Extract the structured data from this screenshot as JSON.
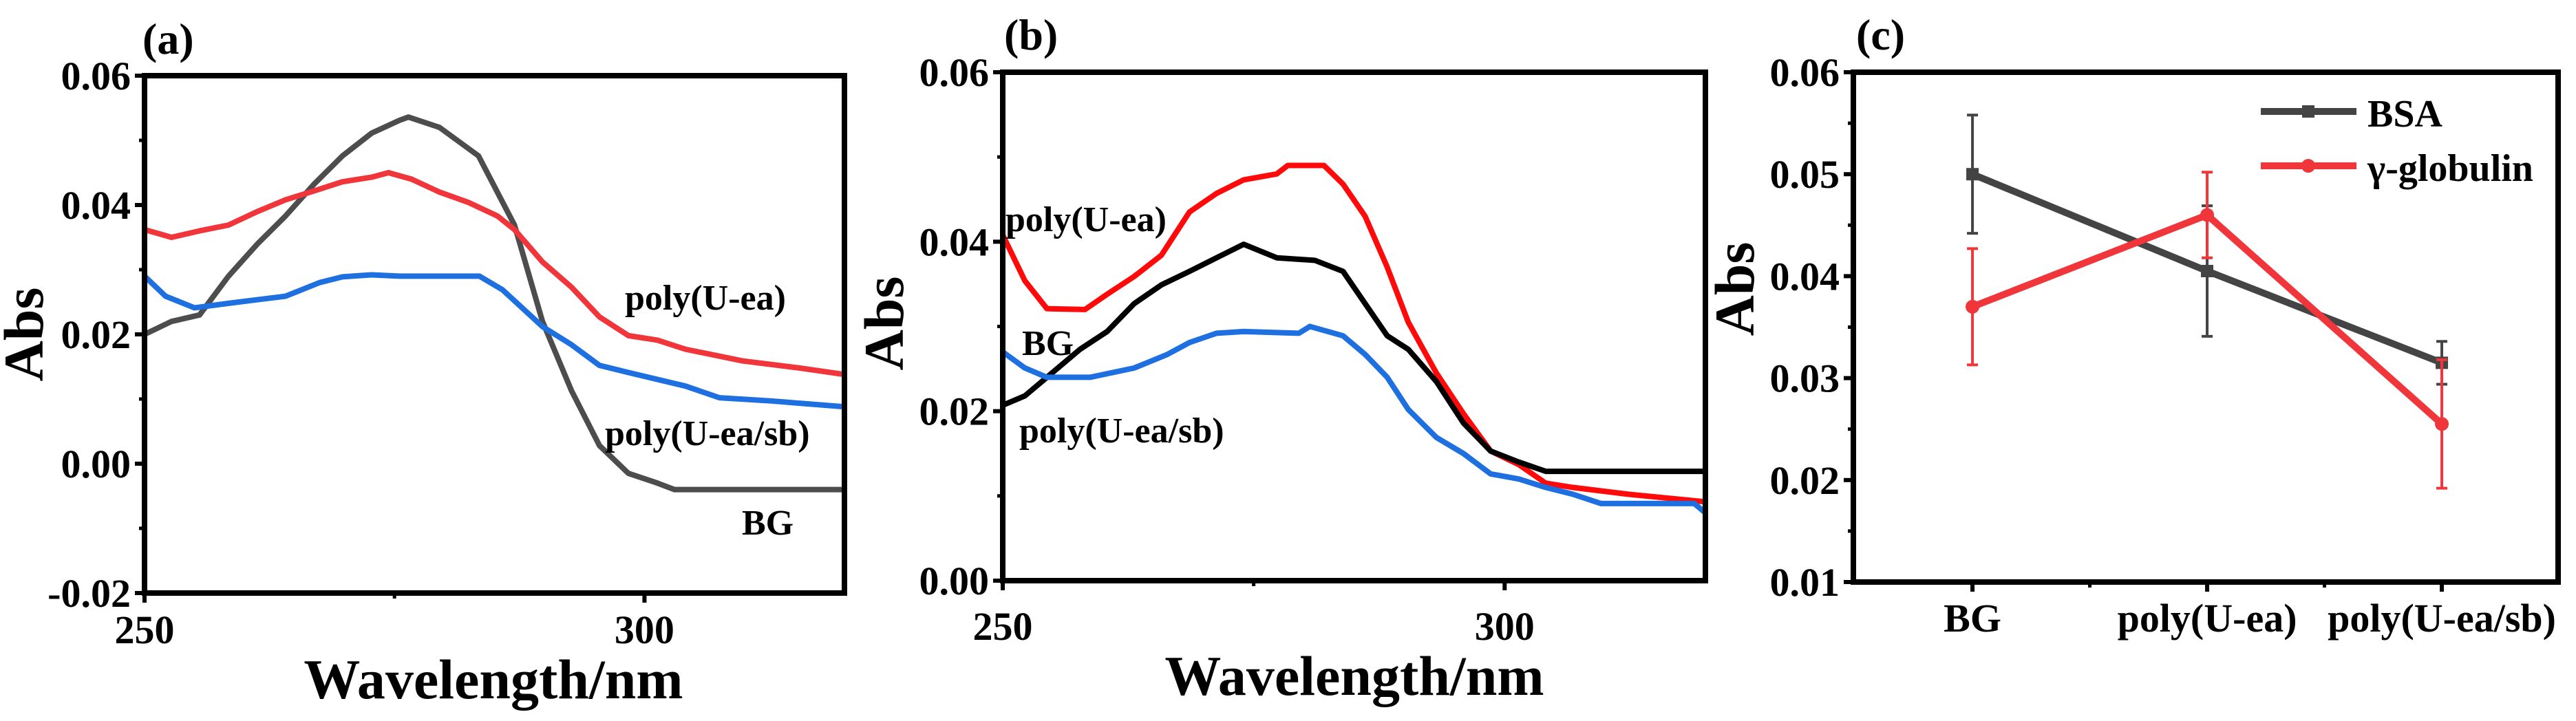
{
  "chart_data": [
    {
      "type": "line",
      "panel_label": "(a)",
      "xlabel": "Wavelength/nm",
      "ylabel": "Abs",
      "xlim": [
        250,
        320
      ],
      "ylim": [
        -0.02,
        0.06
      ],
      "xticks": [
        250,
        300
      ],
      "xtick_labels": [
        "250",
        "300"
      ],
      "yticks": [
        -0.02,
        0.0,
        0.02,
        0.04,
        0.06
      ],
      "ytick_labels": [
        "-0.02",
        "0.00",
        "0.02",
        "0.04",
        "0.06"
      ],
      "series": [
        {
          "name": "BG",
          "color": "#4d4d4d",
          "x": [
            250,
            252.7,
            255.5,
            258.4,
            261.3,
            264.1,
            267,
            269.8,
            272.7,
            275.5,
            276.4,
            279.5,
            283.4,
            287,
            289.8,
            292.7,
            295.5,
            298.4,
            301.3,
            303,
            320
          ],
          "y": [
            0.02,
            0.022,
            0.023,
            0.029,
            0.034,
            0.0383,
            0.0433,
            0.0476,
            0.0511,
            0.0531,
            0.0536,
            0.052,
            0.0476,
            0.0369,
            0.022,
            0.0113,
            0.0028,
            -0.0015,
            -0.003,
            -0.004,
            -0.004
          ]
        },
        {
          "name": "poly(U-ea)",
          "color": "#f0363a",
          "x": [
            250,
            252.7,
            255.5,
            258.4,
            261.3,
            264.1,
            267,
            269.8,
            272.7,
            274.4,
            276.7,
            279.5,
            282.4,
            285.3,
            287,
            289.8,
            292.7,
            295.5,
            298.4,
            301.3,
            304.1,
            309.8,
            315.5,
            320
          ],
          "y": [
            0.0362,
            0.035,
            0.036,
            0.0369,
            0.039,
            0.0408,
            0.0422,
            0.0436,
            0.0443,
            0.045,
            0.044,
            0.042,
            0.0404,
            0.0383,
            0.0362,
            0.0312,
            0.0273,
            0.0227,
            0.0198,
            0.0191,
            0.0177,
            0.0159,
            0.0148,
            0.0138
          ]
        },
        {
          "name": "poly(U-ea/sb)",
          "color": "#1e6fe0",
          "x": [
            250,
            252.1,
            255,
            258.4,
            264.1,
            267.5,
            269.8,
            272.7,
            275.5,
            283.5,
            285.8,
            289.8,
            292.7,
            295.5,
            298.4,
            304.1,
            307.5,
            312.7,
            320
          ],
          "y": [
            0.029,
            0.0259,
            0.0241,
            0.0248,
            0.0259,
            0.028,
            0.0289,
            0.0292,
            0.029,
            0.029,
            0.0269,
            0.0212,
            0.0184,
            0.0152,
            0.0141,
            0.012,
            0.0102,
            0.0097,
            0.0088
          ]
        }
      ],
      "annotations": [
        "poly(U-ea)",
        "poly(U-ea/sb)",
        "BG"
      ]
    },
    {
      "type": "line",
      "panel_label": "(b)",
      "xlabel": "Wavelength/nm",
      "ylabel": "Abs",
      "xlim": [
        250,
        320
      ],
      "ylim": [
        0.0,
        0.06
      ],
      "xticks": [
        250,
        300
      ],
      "xtick_labels": [
        "250",
        "300"
      ],
      "yticks": [
        0.0,
        0.02,
        0.04,
        0.06
      ],
      "ytick_labels": [
        "0.00",
        "0.02",
        "0.04",
        "0.06"
      ],
      "series": [
        {
          "name": "poly(U-ea)",
          "color": "#ff0a0a",
          "x": [
            250,
            252.2,
            254.4,
            258.2,
            260.4,
            263.1,
            265.8,
            268.6,
            271.3,
            274,
            277.3,
            278.4,
            282,
            283.9,
            286.1,
            288.3,
            290.4,
            293.2,
            295.9,
            298.6,
            301.4,
            304.1,
            306.8,
            312.3,
            320
          ],
          "y": [
            0.0408,
            0.0354,
            0.0321,
            0.032,
            0.0338,
            0.0359,
            0.0384,
            0.0435,
            0.0457,
            0.0473,
            0.048,
            0.049,
            0.049,
            0.0468,
            0.043,
            0.037,
            0.0305,
            0.0245,
            0.0197,
            0.0153,
            0.0137,
            0.0115,
            0.011,
            0.0102,
            0.0093
          ]
        },
        {
          "name": "BG",
          "color": "#000000",
          "x": [
            250,
            252.2,
            254.4,
            257.7,
            260.4,
            263.1,
            265.8,
            268.6,
            271.3,
            274,
            277.3,
            281.1,
            283.9,
            286.1,
            288.3,
            290.4,
            293.2,
            295.9,
            298.6,
            301.4,
            304.1,
            320
          ],
          "y": [
            0.0207,
            0.0218,
            0.024,
            0.0273,
            0.0294,
            0.0327,
            0.0349,
            0.0365,
            0.0381,
            0.0397,
            0.0381,
            0.0378,
            0.0365,
            0.0327,
            0.0289,
            0.0273,
            0.0235,
            0.0186,
            0.0153,
            0.014,
            0.0129,
            0.0129
          ]
        },
        {
          "name": "poly(U-ea/sb)",
          "color": "#1e6fe0",
          "x": [
            250,
            252.2,
            254.4,
            258.7,
            263.1,
            266.4,
            268.6,
            271.3,
            274,
            279.5,
            280.6,
            283.9,
            286.1,
            288.3,
            290.4,
            293.2,
            295.9,
            298.6,
            301.4,
            304.1,
            306.8,
            309.6,
            318.9,
            320
          ],
          "y": [
            0.027,
            0.0251,
            0.024,
            0.024,
            0.0251,
            0.0267,
            0.0281,
            0.0292,
            0.0294,
            0.0292,
            0.03,
            0.0289,
            0.0267,
            0.024,
            0.0202,
            0.0169,
            0.015,
            0.0126,
            0.012,
            0.011,
            0.0102,
            0.0091,
            0.0091,
            0.008
          ]
        }
      ],
      "annotations": [
        "poly(U-ea)",
        "BG",
        "poly(U-ea/sb)"
      ]
    },
    {
      "type": "line",
      "panel_label": "(c)",
      "xlabel": "",
      "ylabel": "Abs",
      "ylim": [
        0.01,
        0.06
      ],
      "categories": [
        "BG",
        "poly(U-ea)",
        "poly(U-ea/sb)"
      ],
      "yticks": [
        0.01,
        0.02,
        0.03,
        0.04,
        0.05,
        0.06
      ],
      "ytick_labels": [
        "0.01",
        "0.02",
        "0.03",
        "0.04",
        "0.05",
        "0.06"
      ],
      "legend_position": "top-right",
      "series": [
        {
          "name": "BSA",
          "marker": "square",
          "color": "#444444",
          "values": [
            0.05,
            0.0405,
            0.0315
          ],
          "errors": [
            0.0058,
            0.0064,
            0.0021
          ]
        },
        {
          "name": "γ-globulin",
          "marker": "circle",
          "color": "#f0363a",
          "values": [
            0.037,
            0.046,
            0.0255
          ],
          "errors": [
            0.0057,
            0.0042,
            0.0063
          ]
        }
      ]
    }
  ]
}
